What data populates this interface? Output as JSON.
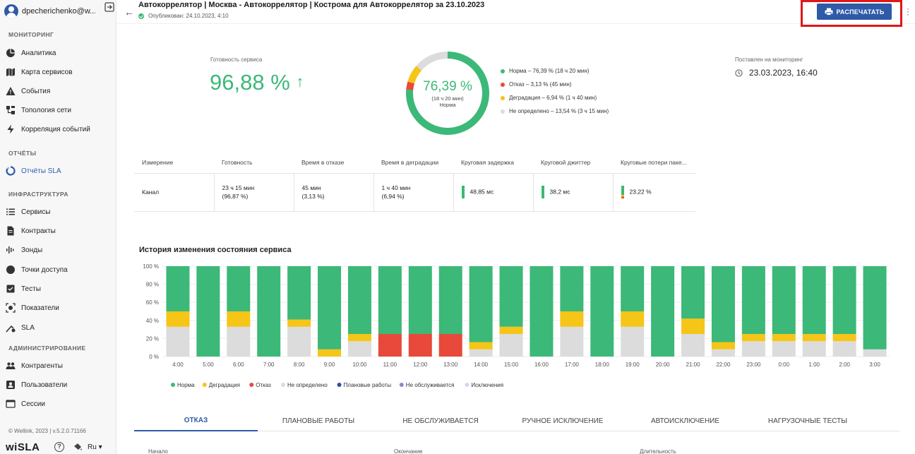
{
  "user": {
    "name": "dpecherichenko@w..."
  },
  "sidebar": {
    "sections": [
      {
        "title": "Мониторинг",
        "items": [
          {
            "label": "Аналитика",
            "icon": "pie-chart-icon"
          },
          {
            "label": "Карта сервисов",
            "icon": "map-icon"
          },
          {
            "label": "События",
            "icon": "warning-icon"
          },
          {
            "label": "Топология сети",
            "icon": "topology-icon"
          },
          {
            "label": "Корреляция событий",
            "icon": "bolt-icon"
          }
        ]
      },
      {
        "title": "Отчёты",
        "items": [
          {
            "label": "Отчёты SLA",
            "icon": "report-icon",
            "active": true
          }
        ]
      },
      {
        "title": "Инфраструктура",
        "items": [
          {
            "label": "Сервисы",
            "icon": "list-icon"
          },
          {
            "label": "Контракты",
            "icon": "document-icon"
          },
          {
            "label": "Зонды",
            "icon": "probe-icon"
          },
          {
            "label": "Точки доступа",
            "icon": "circle-icon"
          },
          {
            "label": "Тесты",
            "icon": "checklist-icon"
          },
          {
            "label": "Показатели",
            "icon": "metrics-icon"
          },
          {
            "label": "SLA",
            "icon": "sla-icon"
          }
        ]
      },
      {
        "title": "Администрирование",
        "items": [
          {
            "label": "Контрагенты",
            "icon": "people-icon"
          },
          {
            "label": "Пользователи",
            "icon": "user-icon"
          },
          {
            "label": "Сессии",
            "icon": "session-icon"
          }
        ]
      }
    ],
    "footer": "© Wellink, 2023 | v.5.2.0.71166",
    "brand": "wiSLA",
    "language": "Ru"
  },
  "header": {
    "title": "Автокоррелятор | Москва - Автокоррелятор | Кострома для Автокоррелятор за 23.10.2023",
    "published": "Опубликован: 24.10.2023, 4:10",
    "print_label": "РАСПЕЧАТАТЬ"
  },
  "summary": {
    "readiness_label": "Готовность сервиса",
    "readiness_value": "96,88 %",
    "readiness_arrow": "↑",
    "donut": {
      "value": "76,39 %",
      "sub": "(18 ч 20 мин)",
      "caption": "Норма",
      "segments": [
        {
          "name": "Норма",
          "pct": 76.39,
          "color": "#3cb878"
        },
        {
          "name": "Отказ",
          "pct": 3.13,
          "color": "#e8493a"
        },
        {
          "name": "Деградация",
          "pct": 6.94,
          "color": "#f5c518"
        },
        {
          "name": "Не определено",
          "pct": 13.54,
          "color": "#dcdcdc"
        }
      ]
    },
    "legend": [
      {
        "text": "Норма – 76,39 % (18 ч 20 мин)",
        "color": "#3cb878"
      },
      {
        "text": "Отказ – 3,13 % (45 мин)",
        "color": "#e8493a"
      },
      {
        "text": "Деградация – 6,94 % (1 ч 40 мин)",
        "color": "#f5c518"
      },
      {
        "text": "Не определено – 13,54 % (3 ч 15 мин)",
        "color": "#dcdcdc"
      }
    ],
    "monitoring_label": "Поставлен на мониторинг",
    "monitoring_value": "23.03.2023, 16:40"
  },
  "table": {
    "headers": [
      "Измерение",
      "Готовность",
      "Время в отказе",
      "Время в деградации",
      "Круговая задержка",
      "Круговой джиттер",
      "Круговые потери паке..."
    ],
    "row": {
      "dimension": "Канал",
      "readiness_1": "23 ч 15 мин",
      "readiness_2": "(96,87 %)",
      "failure_1": "45 мин",
      "failure_2": "(3,13 %)",
      "degradation_1": "1 ч 40 мин",
      "degradation_2": "(6,94 %)",
      "delay": "48,85 мс",
      "jitter": "38,2 мс",
      "loss": "23,22 %"
    }
  },
  "history_title": "История изменения состояния сервиса",
  "chart_data": {
    "type": "bar",
    "stacked": true,
    "title": "История изменения состояния сервиса",
    "y_ticks": [
      "0 %",
      "20 %",
      "40 %",
      "60 %",
      "80 %",
      "100 %"
    ],
    "ylim": [
      0,
      100
    ],
    "categories": [
      "4:00",
      "5:00",
      "6:00",
      "7:00",
      "8:00",
      "9:00",
      "10:00",
      "11:00",
      "12:00",
      "13:00",
      "14:00",
      "15:00",
      "16:00",
      "17:00",
      "18:00",
      "19:00",
      "20:00",
      "21:00",
      "22:00",
      "23:00",
      "0:00",
      "1:00",
      "2:00",
      "3:00"
    ],
    "series": [
      {
        "name": "Не определено",
        "color": "#dcdcdc",
        "values": [
          33,
          0,
          33,
          0,
          33,
          0,
          17,
          0,
          0,
          0,
          8,
          25,
          0,
          33,
          0,
          33,
          0,
          25,
          8,
          17,
          17,
          17,
          17,
          8
        ]
      },
      {
        "name": "Отказ",
        "color": "#e8493a",
        "values": [
          0,
          0,
          0,
          0,
          0,
          0,
          0,
          25,
          25,
          25,
          0,
          0,
          0,
          0,
          0,
          0,
          0,
          0,
          0,
          0,
          0,
          0,
          0,
          0
        ]
      },
      {
        "name": "Деградация",
        "color": "#f5c518",
        "values": [
          17,
          0,
          17,
          0,
          8,
          8,
          8,
          0,
          0,
          0,
          8,
          8,
          0,
          17,
          0,
          17,
          0,
          17,
          8,
          8,
          8,
          8,
          8,
          0
        ]
      },
      {
        "name": "Норма",
        "color": "#3cb878",
        "values": [
          50,
          100,
          50,
          100,
          59,
          92,
          75,
          75,
          75,
          75,
          84,
          67,
          100,
          50,
          100,
          50,
          100,
          58,
          84,
          75,
          75,
          75,
          75,
          92
        ]
      }
    ],
    "legend": [
      {
        "name": "Норма",
        "color": "#3cb878"
      },
      {
        "name": "Деградация",
        "color": "#f5c518"
      },
      {
        "name": "Отказ",
        "color": "#e8493a"
      },
      {
        "name": "Не определено",
        "color": "#dcdcdc"
      },
      {
        "name": "Плановые работы",
        "color": "#2e4f9e"
      },
      {
        "name": "Не обслуживается",
        "color": "#9b7fd6"
      },
      {
        "name": "Исключения",
        "color": "#d0d8ee"
      }
    ]
  },
  "tabs": [
    "Отказ",
    "Плановые работы",
    "Не обслуживается",
    "Ручное исключение",
    "Автоисключение",
    "Нагрузочные тесты"
  ],
  "bottom_columns": [
    "Начало",
    "Окончание",
    "Длительность"
  ]
}
